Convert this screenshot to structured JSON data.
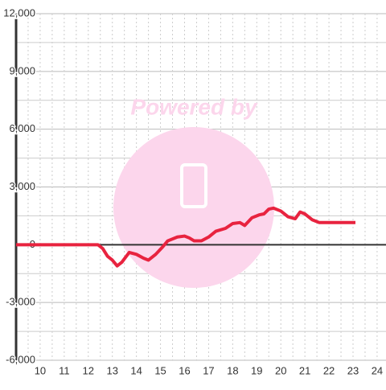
{
  "chart_data": {
    "type": "line",
    "watermark": "Powered by",
    "x": [
      9,
      12.4,
      12.6,
      12.8,
      13.0,
      13.2,
      13.4,
      13.7,
      14.0,
      14.3,
      14.5,
      14.8,
      15.1,
      15.3,
      15.7,
      16.0,
      16.2,
      16.4,
      16.7,
      17.0,
      17.3,
      17.7,
      18.0,
      18.3,
      18.5,
      18.8,
      19.1,
      19.3,
      19.5,
      19.7,
      20.0,
      20.3,
      20.6,
      20.8,
      21.0,
      21.3,
      21.6,
      22.0,
      23.1
    ],
    "series": [
      {
        "color": "#e8233f",
        "values": [
          0,
          0,
          -200,
          -600,
          -800,
          -1100,
          -900,
          -400,
          -500,
          -700,
          -800,
          -500,
          -100,
          200,
          400,
          450,
          350,
          200,
          200,
          400,
          700,
          850,
          1100,
          1150,
          1000,
          1400,
          1550,
          1600,
          1850,
          1900,
          1750,
          1450,
          1350,
          1700,
          1600,
          1300,
          1150,
          1150,
          1150
        ]
      }
    ],
    "xlim": [
      9,
      24.37
    ],
    "ylim": [
      -6000,
      12000
    ],
    "xticks": [
      10,
      11,
      12,
      13,
      14,
      15,
      16,
      17,
      18,
      19,
      20,
      21,
      22,
      23,
      24
    ],
    "xminor": [
      9.5,
      10.5,
      11.5,
      12.5,
      13.5,
      14.5,
      15.5,
      16.5,
      17.5,
      18.5,
      19.5,
      20.5,
      21.5,
      22.5,
      23.5
    ],
    "yticks": [
      {
        "value": -6000,
        "label": "-6,000"
      },
      {
        "value": -3000,
        "label": "-3,000"
      },
      0,
      {
        "value": 3000,
        "label": "3,000"
      },
      {
        "value": 6000,
        "label": "6,000"
      },
      {
        "value": 9000,
        "label": "9,000"
      },
      {
        "value": 12000,
        "label": "12,000"
      }
    ],
    "yminor": [
      -4500,
      -1500,
      1500,
      4500,
      7500,
      10500
    ],
    "grid": true
  }
}
